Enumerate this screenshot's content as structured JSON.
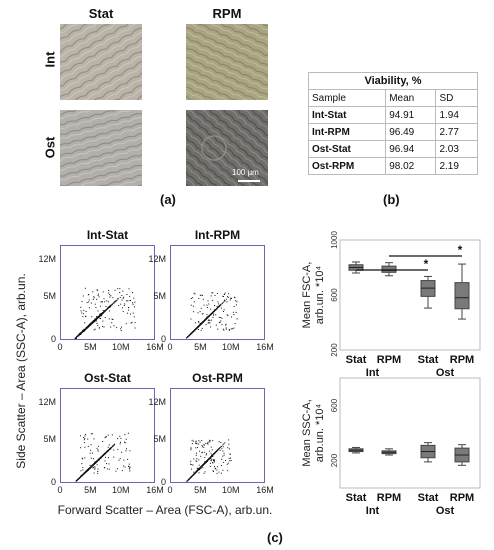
{
  "panel_a": {
    "col_headers": [
      "Stat",
      "RPM"
    ],
    "row_headers": [
      "Int",
      "Ost"
    ],
    "scale_bar": "100 µm",
    "label": "(a)"
  },
  "panel_b": {
    "title": "Viability, %",
    "columns": [
      "Sample",
      "Mean",
      "SD"
    ],
    "rows": [
      {
        "sample": "Int-Stat",
        "mean": "94.91",
        "sd": "1.94"
      },
      {
        "sample": "Int-RPM",
        "mean": "96.49",
        "sd": "2.77"
      },
      {
        "sample": "Ost-Stat",
        "mean": "96.94",
        "sd": "2.03"
      },
      {
        "sample": "Ost-RPM",
        "mean": "98.02",
        "sd": "2.19"
      }
    ],
    "label": "(b)"
  },
  "panel_c": {
    "label": "(c)",
    "scatter_titles": [
      "Int-Stat",
      "Int-RPM",
      "Ost-Stat",
      "Ost-RPM"
    ],
    "scatter_x_ticks": [
      "0",
      "5M",
      "10M",
      "16M"
    ],
    "scatter_y_ticks": [
      "12M",
      "5M",
      "0"
    ],
    "scatter_xlabel": "Forward Scatter – Area (FSC-A), arb.un.",
    "scatter_ylabel": "Side Scatter – Area (SSC-A), arb.un.",
    "box_fsc_ylabel_1": "Mean FSC-A,",
    "box_fsc_ylabel_2": "arb.un. *10⁴",
    "box_ssc_ylabel_1": "Mean SSC-A,",
    "box_ssc_ylabel_2": "arb.un. *10⁴",
    "group_labels": [
      "Int",
      "Ost"
    ],
    "sig_mark": "*"
  },
  "chart_data": [
    {
      "type": "box",
      "ylabel": "Mean FSC-A, arb.un. *10⁴",
      "categories": [
        "Stat",
        "RPM",
        "Stat",
        "RPM"
      ],
      "groups": [
        "Int",
        "Int",
        "Ost",
        "Ost"
      ],
      "ylim": [
        200,
        1000
      ],
      "yticks": [
        200,
        600,
        1000
      ],
      "boxes": [
        {
          "min": 760,
          "q1": 780,
          "median": 800,
          "q3": 820,
          "max": 840
        },
        {
          "min": 740,
          "q1": 765,
          "median": 780,
          "q3": 810,
          "max": 835
        },
        {
          "min": 505,
          "q1": 590,
          "median": 650,
          "q3": 705,
          "max": 735
        },
        {
          "min": 425,
          "q1": 500,
          "median": 580,
          "q3": 690,
          "max": 825
        }
      ],
      "significance": [
        {
          "from": 0,
          "to": 2,
          "mark": "*"
        },
        {
          "from": 1,
          "to": 3,
          "mark": "*"
        }
      ]
    },
    {
      "type": "box",
      "ylabel": "Mean SSC-A, arb.un. *10⁴",
      "categories": [
        "Stat",
        "RPM",
        "Stat",
        "RPM"
      ],
      "groups": [
        "Int",
        "Int",
        "Ost",
        "Ost"
      ],
      "ylim": [
        0,
        800
      ],
      "yticks": [
        200,
        600
      ],
      "boxes": [
        {
          "min": 255,
          "q1": 265,
          "median": 275,
          "q3": 285,
          "max": 295
        },
        {
          "min": 240,
          "q1": 250,
          "median": 260,
          "q3": 270,
          "max": 285
        },
        {
          "min": 190,
          "q1": 220,
          "median": 265,
          "q3": 310,
          "max": 330
        },
        {
          "min": 165,
          "q1": 190,
          "median": 240,
          "q3": 290,
          "max": 315
        }
      ]
    }
  ]
}
